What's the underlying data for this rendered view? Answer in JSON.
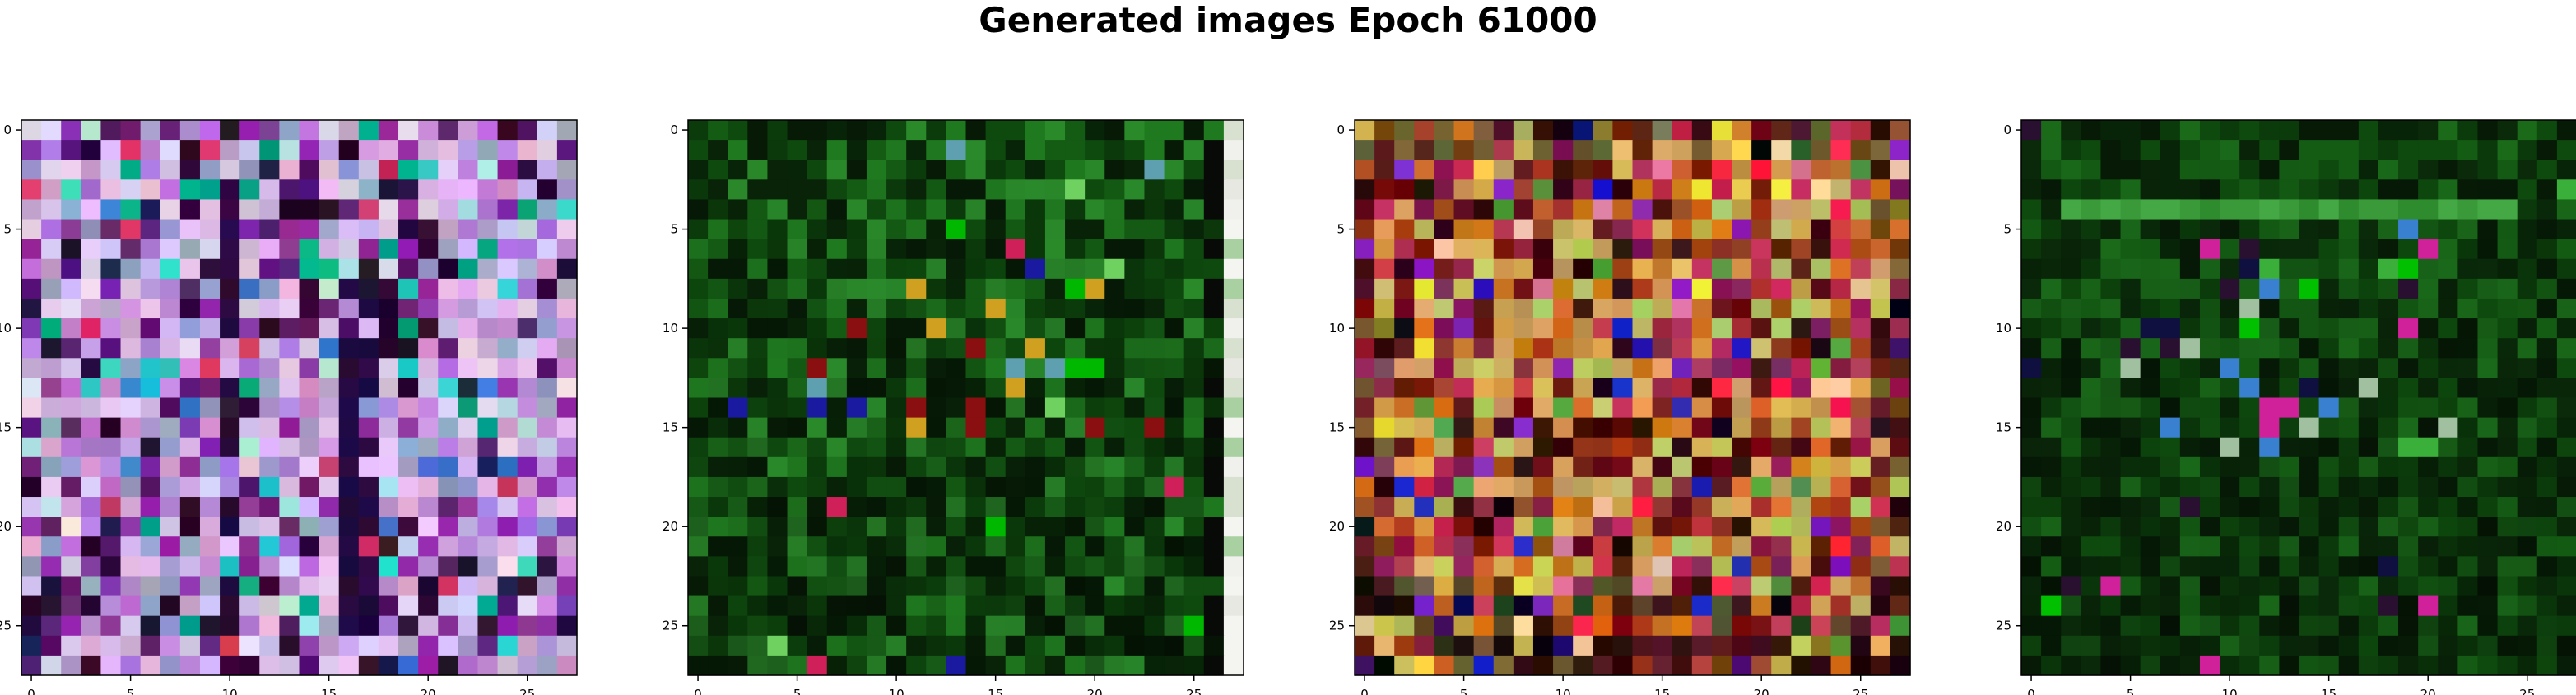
{
  "figure": {
    "title": "Generated images Epoch 61000"
  },
  "axes_ticks": {
    "x": [
      "0",
      "5",
      "10",
      "15",
      "20",
      "25"
    ],
    "y": [
      "0",
      "5",
      "10",
      "15",
      "20",
      "25"
    ]
  },
  "panels": [
    {
      "id": "sample-1",
      "palette_theme": "pastel-magenta",
      "base_colors": [
        "#c89ad4",
        "#b57ad8",
        "#d7b8e3",
        "#9aa0c7",
        "#8a2ea3",
        "#e0c8f0",
        "#5f1a6e",
        "#2a0a30"
      ],
      "accent_colors": [
        "#1b1b4a",
        "#3d7bd0",
        "#2ad0c8",
        "#e8d8f0",
        "#00a884",
        "#b0e0e0",
        "#d03060"
      ]
    },
    {
      "id": "sample-2",
      "palette_theme": "dark-green",
      "base_colors": [
        "#0b3a0b",
        "#145c14",
        "#0e4a0e",
        "#1f7a1f",
        "#082408",
        "#2a8a2a",
        "#061a06"
      ],
      "accent_colors": [
        "#00b800",
        "#6fd15f",
        "#1a1aa0",
        "#8a0f10",
        "#5fa0b0",
        "#d0a020",
        "#d0205a"
      ],
      "right_strip_colors": [
        "#e8e8e2",
        "#f0f0ec",
        "#d8e0d0",
        "#a8d0a0",
        "#f4f4f0"
      ]
    },
    {
      "id": "sample-3",
      "palette_theme": "warm-multicolor",
      "base_colors": [
        "#c8a050",
        "#a04020",
        "#d07020",
        "#e0b060",
        "#8a2050",
        "#c03050",
        "#6a1010",
        "#b8c060",
        "#3a0a10"
      ],
      "accent_colors": [
        "#f0e040",
        "#ff2040",
        "#2020c0",
        "#50a040",
        "#8020c0",
        "#e080a0",
        "#100810",
        "#f0d0a0"
      ]
    },
    {
      "id": "sample-4",
      "palette_theme": "dark-green",
      "base_colors": [
        "#0b3a0b",
        "#145c14",
        "#0e4a0e",
        "#1a6a1a",
        "#082408",
        "#0a2a0a",
        "#061a06"
      ],
      "accent_colors": [
        "#3ab03a",
        "#d0209a",
        "#3a80d0",
        "#101040",
        "#a0c0a0",
        "#00c000",
        "#2a1030"
      ],
      "stripe_colors": [
        "#3a9a3a",
        "#44a844",
        "#2e8c2e"
      ]
    }
  ]
}
